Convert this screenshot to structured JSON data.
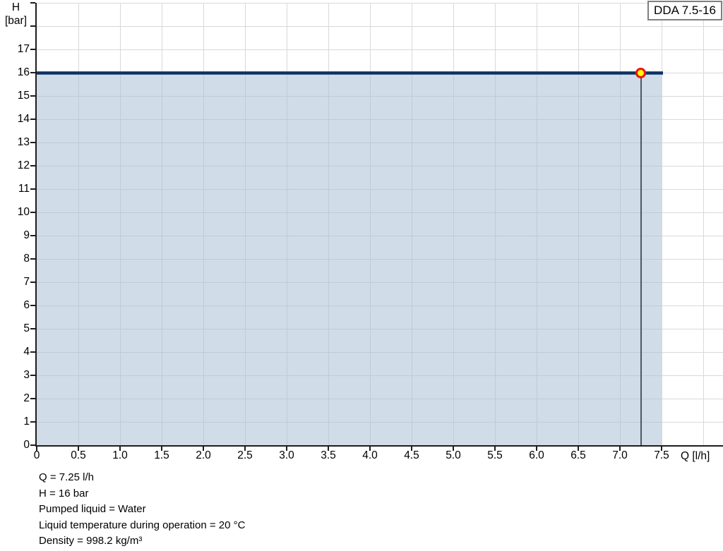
{
  "chart_data": {
    "type": "area",
    "title": "DDA 7.5-16",
    "x": {
      "label": "Q [l/h]",
      "min": 0,
      "max": 8.24,
      "tick_step": 0.5,
      "grid_step": 0.5,
      "grid_max": 8.0,
      "tick_labels": [
        "0",
        "0.5",
        "1.0",
        "1.5",
        "2.0",
        "2.5",
        "3.0",
        "3.5",
        "4.0",
        "4.5",
        "5.0",
        "5.5",
        "6.0",
        "6.5",
        "7.0",
        "7.5"
      ]
    },
    "y": {
      "label": "H [bar]",
      "caption_lines": [
        "H",
        "[bar]"
      ],
      "min": 0,
      "max": 19,
      "tick_step": 1,
      "tick_max": 19,
      "tick_labels": [
        "0",
        "1",
        "2",
        "3",
        "4",
        "5",
        "6",
        "7",
        "8",
        "9",
        "10",
        "11",
        "12",
        "13",
        "14",
        "15",
        "16",
        "17"
      ]
    },
    "grid": true,
    "legend_position": "none",
    "series": [
      {
        "name": "pump-curve",
        "points": [
          [
            0,
            16
          ],
          [
            7.5,
            16
          ]
        ],
        "color": "#0e3160"
      }
    ],
    "area_fill": {
      "x_from": 0,
      "x_to": 7.5,
      "y_top": 16,
      "color": "rgba(170,191,211,0.55)"
    },
    "operating_point": {
      "q": 7.25,
      "h": 16,
      "marker_fill": "#ffff00",
      "marker_stroke": "#ee1111",
      "dropline_color": "#4c5966"
    },
    "colors": {
      "grid": "#d9d9d9",
      "axis": "#1d1d1d",
      "curve_core": "#0e3160",
      "curve_edge": "#5c85b4"
    },
    "annotations": [
      "Q = 7.25 l/h",
      "H = 16 bar",
      "Pumped liquid = Water",
      "Liquid temperature during operation = 20 °C",
      "Density = 998.2 kg/m³"
    ]
  }
}
